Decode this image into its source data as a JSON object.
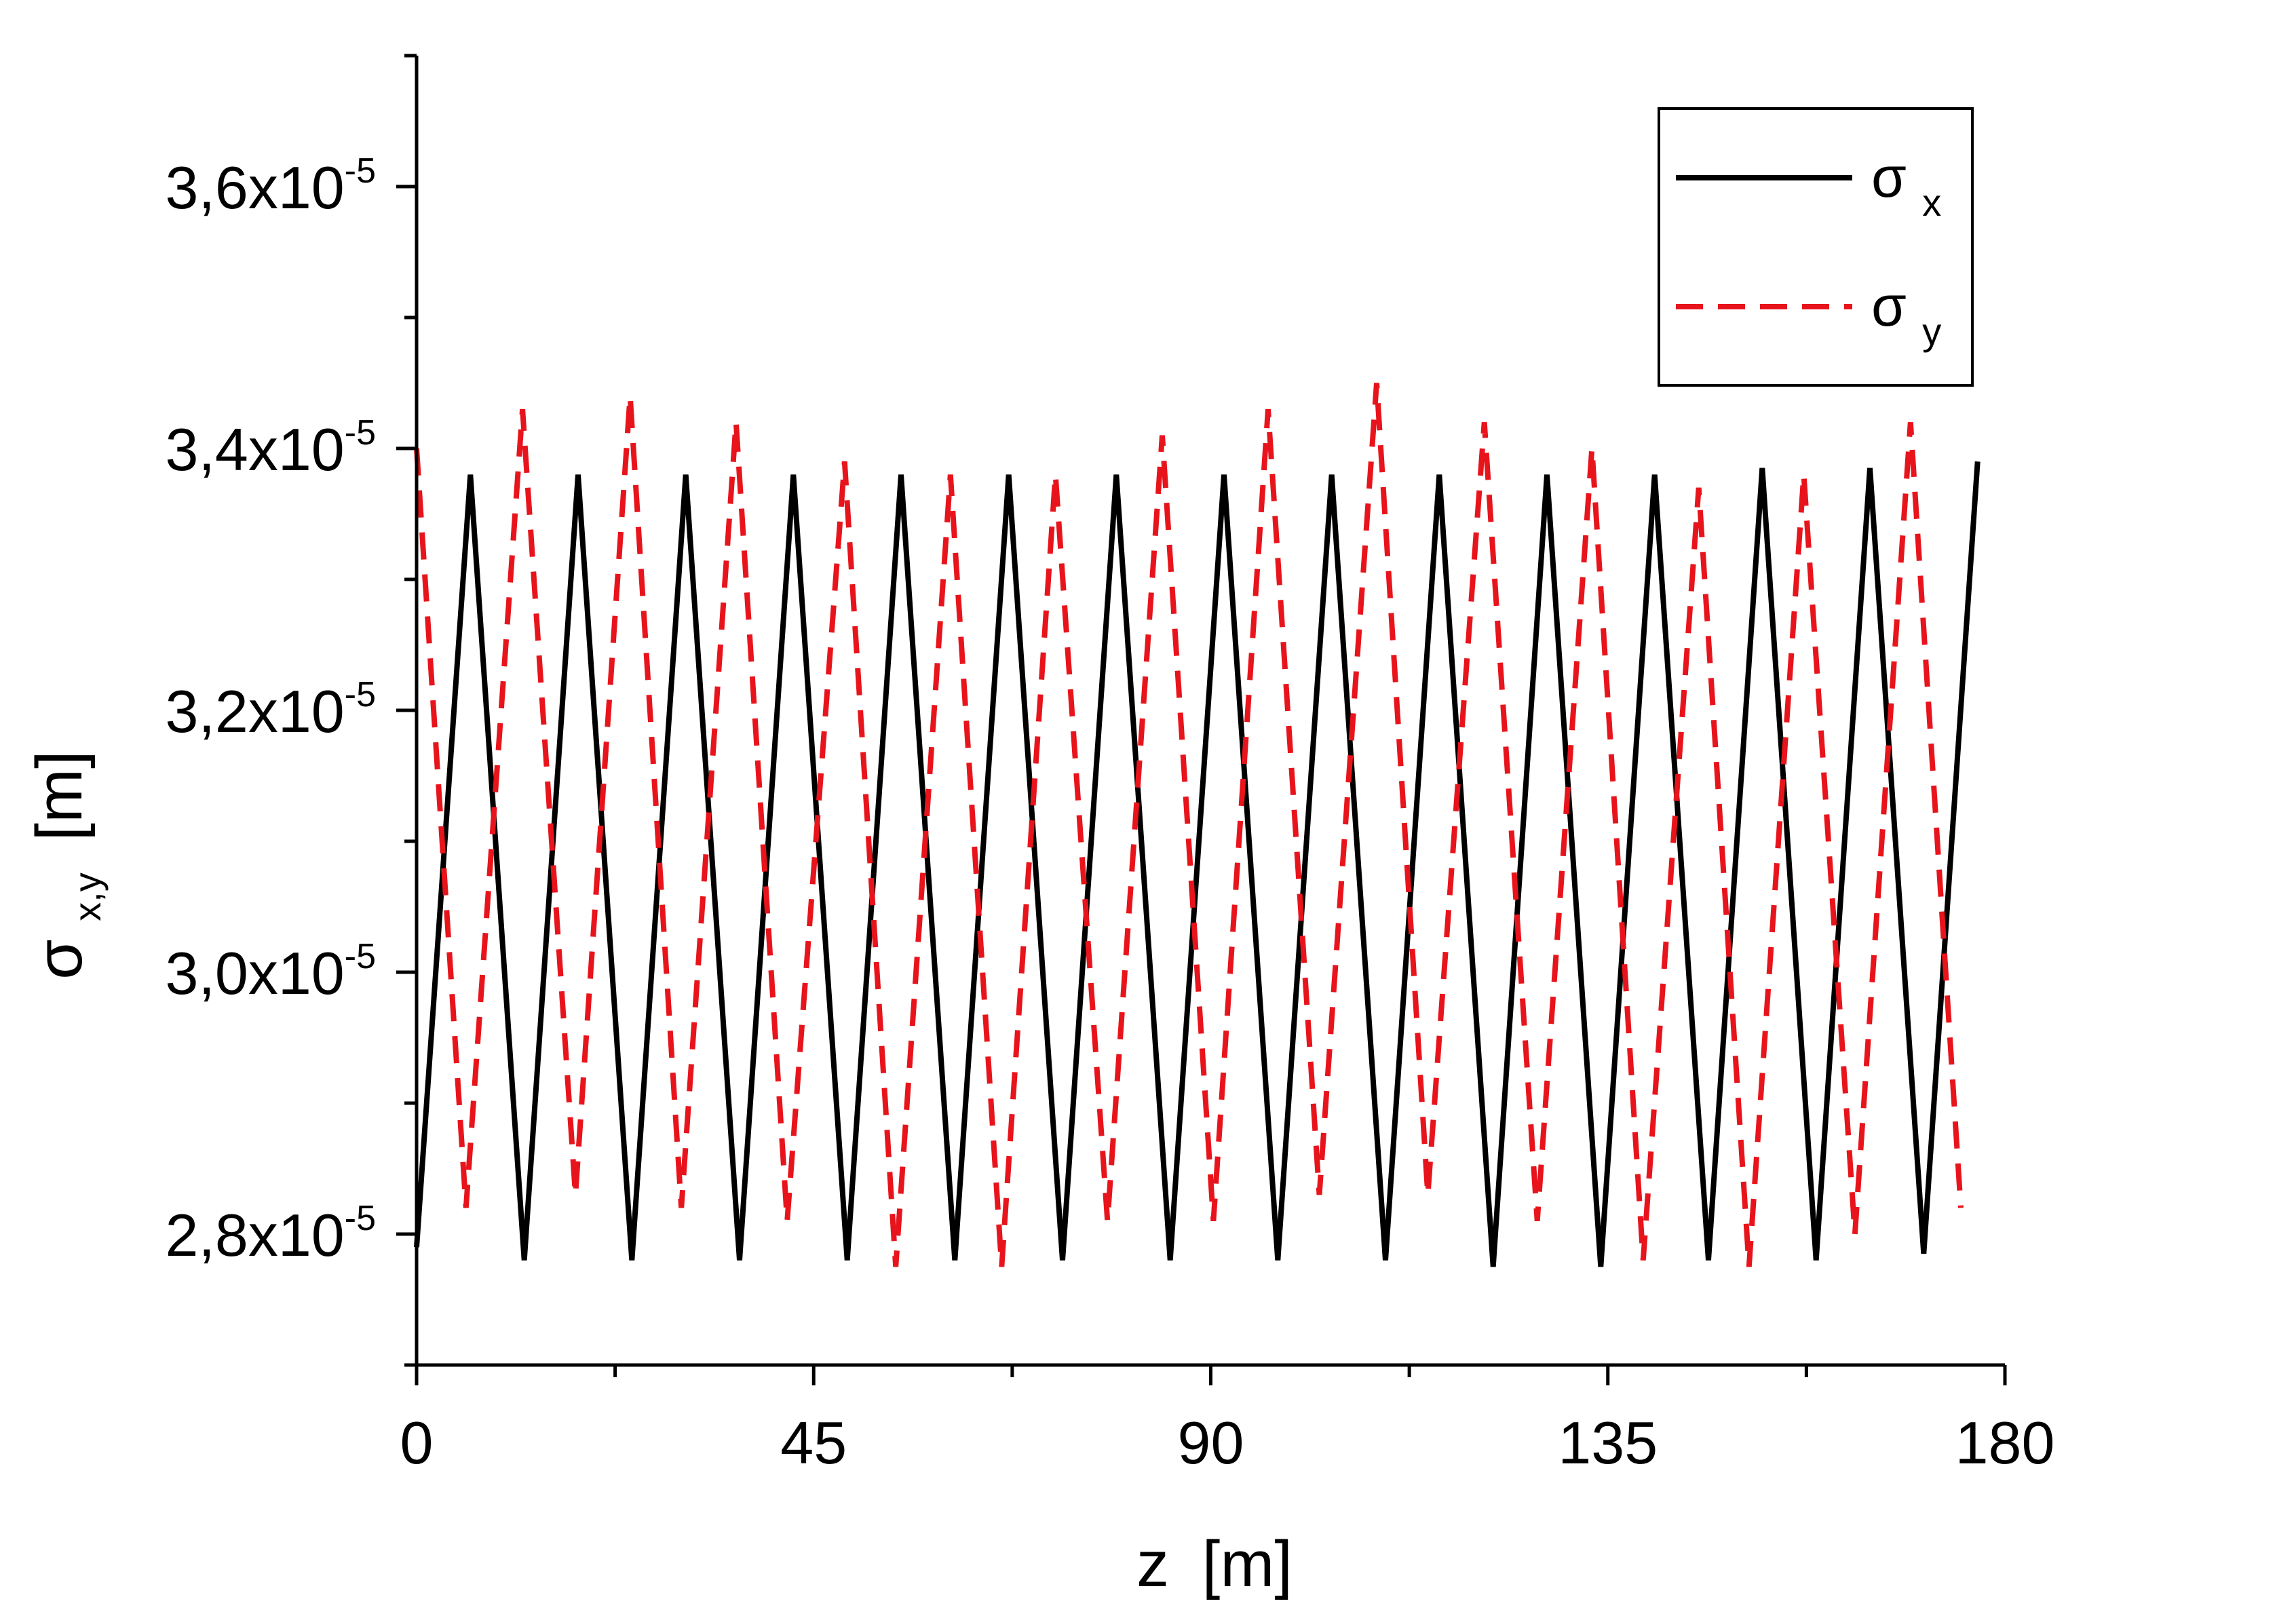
{
  "chart_data": {
    "type": "line",
    "xlabel": {
      "main": "z",
      "unit": "[m]"
    },
    "ylabel": {
      "symbol": "σ",
      "subscript": "x,y",
      "unit": "[m]"
    },
    "xlim": [
      0,
      180
    ],
    "ylim": [
      2.7e-05,
      3.7e-05
    ],
    "x_ticks": [
      0,
      45,
      90,
      135,
      180
    ],
    "x_tick_labels": [
      "0",
      "45",
      "90",
      "135",
      "180"
    ],
    "y_ticks": [
      2.8e-05,
      3e-05,
      3.2e-05,
      3.4e-05,
      3.6e-05
    ],
    "y_tick_labels": [
      {
        "mantissa": "2,8x10",
        "exponent": "-5"
      },
      {
        "mantissa": "3,0x10",
        "exponent": "-5"
      },
      {
        "mantissa": "3,2x10",
        "exponent": "-5"
      },
      {
        "mantissa": "3,4x10",
        "exponent": "-5"
      },
      {
        "mantissa": "3,6x10",
        "exponent": "-5"
      }
    ],
    "grid": false,
    "legend_position": "top-right",
    "series": [
      {
        "name": "σ_x",
        "legend": {
          "symbol": "σ",
          "subscript": "x"
        },
        "color": "#000000",
        "style": "solid",
        "x": [
          0,
          6.1,
          12.2,
          18.3,
          24.4,
          30.5,
          36.6,
          42.7,
          48.8,
          54.9,
          61.0,
          67.1,
          73.2,
          79.3,
          85.4,
          91.5,
          97.6,
          103.7,
          109.8,
          115.9,
          122.0,
          128.1,
          134.2,
          140.3,
          146.4,
          152.5,
          158.6,
          164.7,
          170.8,
          176.9
        ],
        "y": [
          2.79e-05,
          3.38e-05,
          2.78e-05,
          3.38e-05,
          2.78e-05,
          3.38e-05,
          2.78e-05,
          3.38e-05,
          2.78e-05,
          3.38e-05,
          2.78e-05,
          3.38e-05,
          2.78e-05,
          3.38e-05,
          2.78e-05,
          3.38e-05,
          2.78e-05,
          3.38e-05,
          2.78e-05,
          3.38e-05,
          2.775e-05,
          3.38e-05,
          2.775e-05,
          3.38e-05,
          2.78e-05,
          3.385e-05,
          2.78e-05,
          3.385e-05,
          2.785e-05,
          3.39e-05
        ]
      },
      {
        "name": "σ_y",
        "legend": {
          "symbol": "σ",
          "subscript": "y"
        },
        "color": "#e8141c",
        "style": "dashed",
        "x": [
          0,
          5.6,
          12.0,
          18.0,
          24.2,
          30.0,
          36.2,
          42.0,
          48.5,
          54.3,
          60.5,
          66.3,
          72.4,
          78.3,
          84.5,
          90.3,
          96.5,
          102.3,
          108.8,
          114.6,
          121.0,
          127.0,
          133.2,
          139.0,
          145.3,
          151.0,
          157.2,
          163.0,
          169.3,
          175.0
        ],
        "y": [
          3.4e-05,
          2.82e-05,
          3.43e-05,
          2.83e-05,
          3.44e-05,
          2.82e-05,
          3.42e-05,
          2.81e-05,
          3.39e-05,
          2.775e-05,
          3.38e-05,
          2.775e-05,
          3.38e-05,
          2.81e-05,
          3.41e-05,
          2.81e-05,
          3.43e-05,
          2.83e-05,
          3.45e-05,
          2.83e-05,
          3.42e-05,
          2.81e-05,
          3.4e-05,
          2.78e-05,
          3.37e-05,
          2.775e-05,
          3.38e-05,
          2.8e-05,
          3.42e-05,
          2.82e-05
        ]
      }
    ]
  }
}
